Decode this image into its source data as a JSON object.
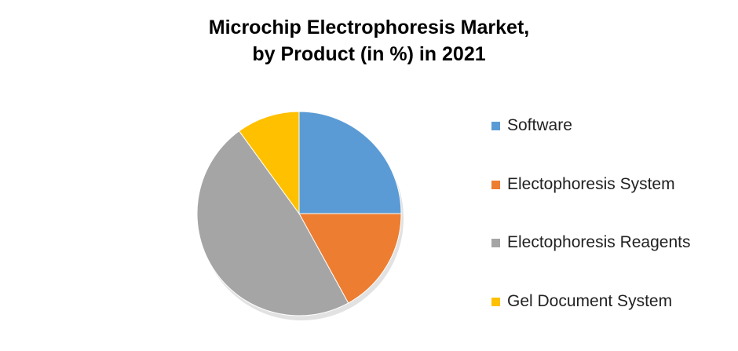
{
  "chart_data": {
    "type": "pie",
    "title_line1": "Microchip Electrophoresis Market,",
    "title_line2": "by Product (in %) in 2021",
    "slices": [
      {
        "label": "Software",
        "value": 25,
        "color": "#5B9BD5"
      },
      {
        "label": "Electophoresis System",
        "value": 17,
        "color": "#ED7D31"
      },
      {
        "label": "Electophoresis Reagents",
        "value": 48,
        "color": "#A5A5A5"
      },
      {
        "label": "Gel Document System",
        "value": 10,
        "color": "#FFC000"
      }
    ],
    "start_angle_deg": 0,
    "direction": "clockwise",
    "legend_position": "right"
  }
}
